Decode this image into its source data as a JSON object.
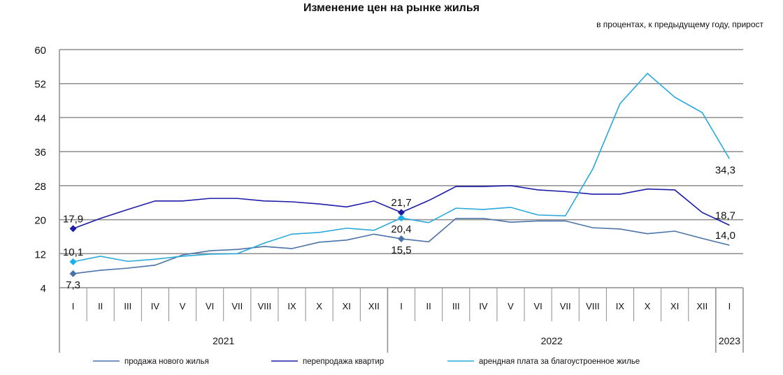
{
  "chart_data": {
    "type": "line",
    "title": "Изменение цен на рынке жилья",
    "subtitle": "в процентах, к предыдущему году, прирост",
    "ylim": [
      4,
      60
    ],
    "yticks": [
      4,
      12,
      20,
      28,
      36,
      44,
      52,
      60
    ],
    "grid": true,
    "legend_position": "bottom",
    "categories": [
      "I",
      "II",
      "III",
      "IV",
      "V",
      "VI",
      "VII",
      "VIII",
      "IX",
      "X",
      "XI",
      "XII",
      "I",
      "II",
      "III",
      "IV",
      "V",
      "VI",
      "VII",
      "VIII",
      "IX",
      "X",
      "XI",
      "XII",
      "I"
    ],
    "years": [
      {
        "label": "2021",
        "span": 12
      },
      {
        "label": "2022",
        "span": 12
      },
      {
        "label": "2023",
        "span": 1
      }
    ],
    "series": [
      {
        "name": "продажа нового  жилья",
        "color": "#4a72a8",
        "values": [
          7.3,
          8.1,
          8.6,
          9.3,
          11.7,
          12.7,
          13.0,
          13.7,
          13.2,
          14.7,
          15.2,
          16.6,
          15.5,
          14.8,
          20.3,
          20.3,
          19.4,
          19.7,
          19.7,
          18.1,
          17.8,
          16.7,
          17.3,
          15.6,
          14.0
        ],
        "labels": [
          {
            "index": 0,
            "text": "7,3",
            "pos": "below"
          },
          {
            "index": 12,
            "text": "15,5",
            "pos": "below"
          },
          {
            "index": 24,
            "text": "14,0",
            "pos": "above"
          }
        ]
      },
      {
        "name": "перепродажа  квартир",
        "color": "#1c1ca8",
        "values": [
          17.9,
          20.3,
          22.4,
          24.4,
          24.4,
          25.0,
          25.0,
          24.4,
          24.2,
          23.7,
          23.0,
          24.4,
          21.7,
          24.5,
          27.8,
          27.8,
          28.0,
          27.0,
          26.6,
          26.0,
          26.0,
          27.2,
          27.0,
          21.7,
          18.7
        ],
        "labels": [
          {
            "index": 0,
            "text": "17,9",
            "pos": "above"
          },
          {
            "index": 12,
            "text": "21,7",
            "pos": "above"
          },
          {
            "index": 24,
            "text": "18,7",
            "pos": "above"
          }
        ]
      },
      {
        "name": "арендная плата за благоустроенное   жилье",
        "color": "#2aa8dc",
        "values": [
          10.1,
          11.4,
          10.2,
          10.7,
          11.4,
          11.9,
          12.0,
          14.5,
          16.6,
          17.0,
          18.0,
          17.5,
          20.4,
          19.3,
          22.7,
          22.4,
          22.9,
          21.1,
          20.9,
          31.9,
          47.3,
          54.4,
          48.8,
          45.2,
          34.3
        ],
        "labels": [
          {
            "index": 0,
            "text": "10,1",
            "pos": "above"
          },
          {
            "index": 12,
            "text": "20,4",
            "pos": "below"
          },
          {
            "index": 24,
            "text": "34,3",
            "pos": "below"
          }
        ]
      }
    ]
  }
}
